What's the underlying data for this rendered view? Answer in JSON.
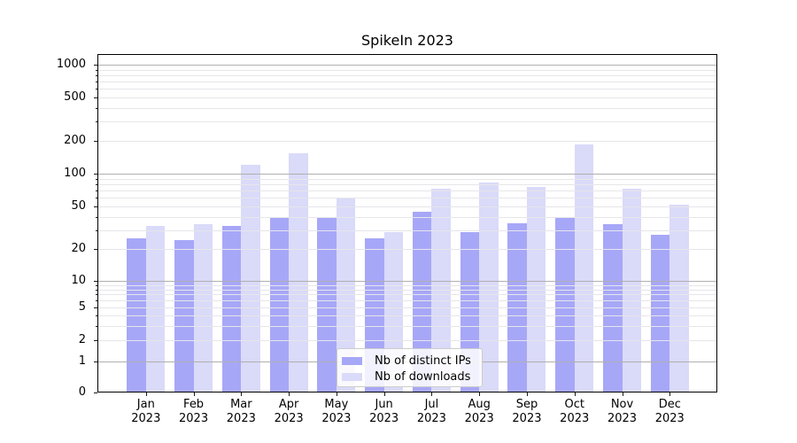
{
  "chart_data": {
    "type": "bar",
    "title": "SpikeIn 2023",
    "categories": [
      "Jan 2023",
      "Feb 2023",
      "Mar 2023",
      "Apr 2023",
      "May 2023",
      "Jun 2023",
      "Jul 2023",
      "Aug 2023",
      "Sep 2023",
      "Oct 2023",
      "Nov 2023",
      "Dec 2023"
    ],
    "series": [
      {
        "name": "Nb of distinct IPs",
        "color": "#a7a7f8",
        "values": [
          25,
          24,
          33,
          40,
          40,
          25,
          45,
          29,
          35,
          40,
          34,
          27
        ]
      },
      {
        "name": "Nb of downloads",
        "color": "#dadaf9",
        "values": [
          33,
          34,
          120,
          155,
          60,
          29,
          73,
          83,
          76,
          185,
          73,
          52
        ]
      }
    ],
    "yscale": "symlog",
    "ylim": [
      0,
      1000
    ],
    "ytick_labels": [
      "0",
      "1",
      "2",
      "5",
      "10",
      "20",
      "50",
      "100",
      "200",
      "500",
      "1000"
    ],
    "grid": true,
    "legend_position": "lower center",
    "colors": {
      "grid_major": "#b0b0b0",
      "grid_minor": "#e6e6ea",
      "axis": "#000000",
      "background": "#ffffff"
    }
  }
}
